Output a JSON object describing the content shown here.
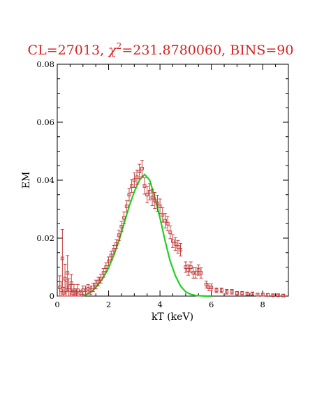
{
  "chart_data": {
    "type": "scatter",
    "title_prefix": "CL=27013,  ",
    "title_chi": "χ",
    "title_sup": "2",
    "title_suffix": "=231.8780060, BINS=90",
    "xlabel": "kT (keV)",
    "ylabel": "EM",
    "xlim": [
      0,
      9
    ],
    "ylim": [
      0,
      0.08
    ],
    "x_ticks": [
      "0",
      "2",
      "4",
      "6",
      "8"
    ],
    "y_ticks": [
      "0",
      "0.02",
      "0.04",
      "0.06",
      "0.08"
    ],
    "grid": false,
    "colors": {
      "data": "#c03030",
      "fit": "#22d022",
      "title": "#d62020",
      "axes": "#000000"
    },
    "series": [
      {
        "type": "errorbar",
        "x": [
          0.1,
          0.15,
          0.2,
          0.25,
          0.3,
          0.35,
          0.4,
          0.45,
          0.5,
          0.55,
          0.6,
          0.65,
          0.7,
          0.75,
          0.8,
          0.9,
          1.0,
          1.1,
          1.2,
          1.3,
          1.4,
          1.5,
          1.6,
          1.7,
          1.8,
          1.9,
          2.0,
          2.1,
          2.2,
          2.3,
          2.4,
          2.5,
          2.6,
          2.7,
          2.8,
          2.9,
          3.0,
          3.1,
          3.2,
          3.3,
          3.4,
          3.5,
          3.6,
          3.7,
          3.8,
          3.9,
          4.0,
          4.1,
          4.2,
          4.3,
          4.4,
          4.5,
          4.6,
          4.7,
          4.8,
          5.0,
          5.1,
          5.2,
          5.3,
          5.4,
          5.5,
          5.6,
          5.8,
          5.9,
          6.0,
          6.2,
          6.4,
          6.6,
          6.8,
          7.0,
          7.2,
          7.4,
          7.6,
          7.8,
          8.0,
          8.2,
          8.4,
          8.6,
          8.8
        ],
        "y": [
          0.003,
          0.002,
          0.013,
          0.001,
          0.006,
          0.002,
          0.008,
          0.003,
          0.002,
          0.0045,
          0.001,
          0.002,
          0.0015,
          0.0005,
          0.002,
          0.001,
          0.002,
          0.002,
          0.0025,
          0.002,
          0.003,
          0.004,
          0.005,
          0.006,
          0.008,
          0.01,
          0.012,
          0.014,
          0.016,
          0.018,
          0.021,
          0.024,
          0.027,
          0.031,
          0.035,
          0.038,
          0.04,
          0.041,
          0.043,
          0.044,
          0.038,
          0.035,
          0.036,
          0.034,
          0.033,
          0.032,
          0.031,
          0.028,
          0.026,
          0.025,
          0.022,
          0.019,
          0.018,
          0.017,
          0.016,
          0.01,
          0.009,
          0.01,
          0.008,
          0.008,
          0.009,
          0.008,
          0.004,
          0.003,
          0.003,
          0.002,
          0.002,
          0.0015,
          0.0015,
          0.001,
          0.001,
          0.0008,
          0.0008,
          0.0005,
          0.0005,
          0.0004,
          0.0003,
          0.0003,
          0.0002
        ],
        "err": [
          0.004,
          0.003,
          0.01,
          0.002,
          0.005,
          0.003,
          0.006,
          0.003,
          0.002,
          0.003,
          0.001,
          0.002,
          0.001,
          0.001,
          0.002,
          0.001,
          0.0015,
          0.0015,
          0.0015,
          0.0015,
          0.0015,
          0.0015,
          0.0015,
          0.0015,
          0.0015,
          0.0015,
          0.0015,
          0.0015,
          0.0015,
          0.0015,
          0.0018,
          0.0018,
          0.002,
          0.002,
          0.0022,
          0.0022,
          0.0025,
          0.0025,
          0.0025,
          0.0028,
          0.0028,
          0.0028,
          0.0028,
          0.0028,
          0.0028,
          0.0028,
          0.0025,
          0.0025,
          0.0025,
          0.0025,
          0.0022,
          0.0022,
          0.0022,
          0.0022,
          0.0022,
          0.0018,
          0.0018,
          0.0018,
          0.0018,
          0.0018,
          0.0018,
          0.0018,
          0.0012,
          0.0012,
          0.0012,
          0.0008,
          0.0008,
          0.0008,
          0.0008,
          0.0006,
          0.0006,
          0.0006,
          0.0006,
          0.0005,
          0.0005,
          0.0005,
          0.0004,
          0.0004,
          0.0004
        ]
      },
      {
        "type": "line",
        "x": [
          1.0,
          1.2,
          1.4,
          1.6,
          1.8,
          2.0,
          2.2,
          2.4,
          2.6,
          2.8,
          3.0,
          3.2,
          3.4,
          3.6,
          3.8,
          4.0,
          4.2,
          4.4,
          4.6,
          4.8,
          5.0,
          5.2,
          5.4,
          5.6,
          5.8,
          6.0
        ],
        "y": [
          0.0,
          0.0008,
          0.002,
          0.004,
          0.0065,
          0.0098,
          0.014,
          0.019,
          0.025,
          0.031,
          0.036,
          0.04,
          0.042,
          0.04,
          0.034,
          0.027,
          0.019,
          0.012,
          0.007,
          0.0035,
          0.0015,
          0.0006,
          0.0002,
          0.0001,
          0.0,
          0.0
        ]
      }
    ]
  }
}
